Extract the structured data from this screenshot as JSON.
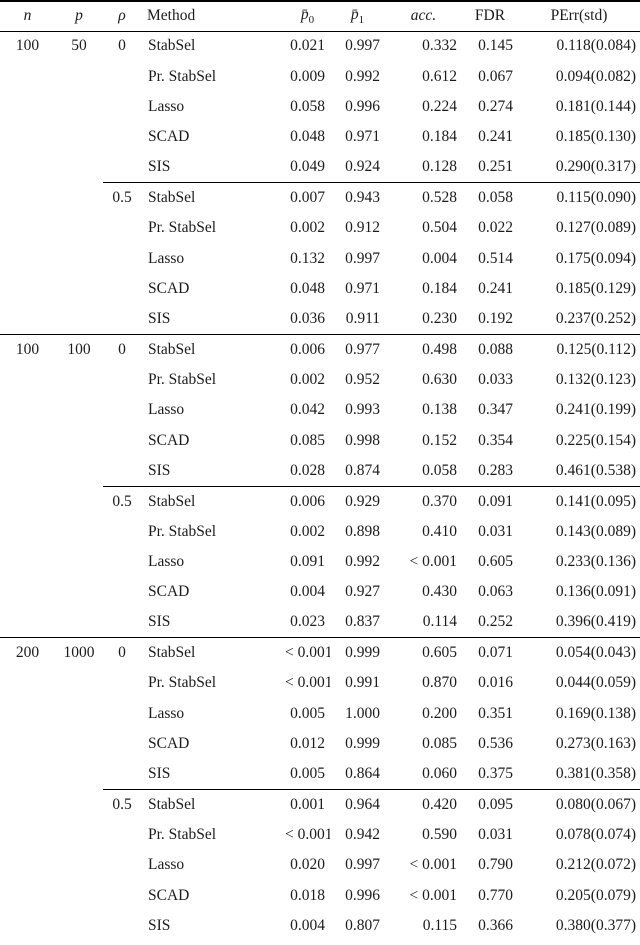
{
  "colors": {
    "background": "#ffffff",
    "text": "#1b1b1b",
    "rule": "#000000"
  },
  "table": {
    "columns": [
      {
        "key": "n",
        "label": "n",
        "italic": true
      },
      {
        "key": "p",
        "label": "p",
        "italic": true
      },
      {
        "key": "rho",
        "label": "ρ",
        "italic": true
      },
      {
        "key": "method",
        "label": "Method",
        "italic": false
      },
      {
        "key": "p0",
        "label": "p̄",
        "sub": "0",
        "italic": true
      },
      {
        "key": "p1",
        "label": "p̄",
        "sub": "1",
        "italic": true
      },
      {
        "key": "acc",
        "label": "acc.",
        "italic": true
      },
      {
        "key": "fdr",
        "label": "FDR",
        "italic": false
      },
      {
        "key": "perr",
        "label": "PErr(std)",
        "italic": false
      }
    ],
    "groups": [
      {
        "n": "100",
        "p": "50",
        "subgroups": [
          {
            "rho": "0",
            "rows": [
              {
                "method": "StabSel",
                "p0": "0.021",
                "p1": "0.997",
                "acc": "0.332",
                "fdr": "0.145",
                "perr": "0.118(0.084)"
              },
              {
                "method": "Pr. StabSel",
                "p0": "0.009",
                "p1": "0.992",
                "acc": "0.612",
                "fdr": "0.067",
                "perr": "0.094(0.082)"
              },
              {
                "method": "Lasso",
                "p0": "0.058",
                "p1": "0.996",
                "acc": "0.224",
                "fdr": "0.274",
                "perr": "0.181(0.144)"
              },
              {
                "method": "SCAD",
                "p0": "0.048",
                "p1": "0.971",
                "acc": "0.184",
                "fdr": "0.241",
                "perr": "0.185(0.130)"
              },
              {
                "method": "SIS",
                "p0": "0.049",
                "p1": "0.924",
                "acc": "0.128",
                "fdr": "0.251",
                "perr": "0.290(0.317)"
              }
            ]
          },
          {
            "rho": "0.5",
            "rows": [
              {
                "method": "StabSel",
                "p0": "0.007",
                "p1": "0.943",
                "acc": "0.528",
                "fdr": "0.058",
                "perr": "0.115(0.090)"
              },
              {
                "method": "Pr. StabSel",
                "p0": "0.002",
                "p1": "0.912",
                "acc": "0.504",
                "fdr": "0.022",
                "perr": "0.127(0.089)"
              },
              {
                "method": "Lasso",
                "p0": "0.132",
                "p1": "0.997",
                "acc": "0.004",
                "fdr": "0.514",
                "perr": "0.175(0.094)"
              },
              {
                "method": "SCAD",
                "p0": "0.048",
                "p1": "0.971",
                "acc": "0.184",
                "fdr": "0.241",
                "perr": "0.185(0.129)"
              },
              {
                "method": "SIS",
                "p0": "0.036",
                "p1": "0.911",
                "acc": "0.230",
                "fdr": "0.192",
                "perr": "0.237(0.252)"
              }
            ]
          }
        ]
      },
      {
        "n": "100",
        "p": "100",
        "subgroups": [
          {
            "rho": "0",
            "rows": [
              {
                "method": "StabSel",
                "p0": "0.006",
                "p1": "0.977",
                "acc": "0.498",
                "fdr": "0.088",
                "perr": "0.125(0.112)"
              },
              {
                "method": "Pr. StabSel",
                "p0": "0.002",
                "p1": "0.952",
                "acc": "0.630",
                "fdr": "0.033",
                "perr": "0.132(0.123)"
              },
              {
                "method": "Lasso",
                "p0": "0.042",
                "p1": "0.993",
                "acc": "0.138",
                "fdr": "0.347",
                "perr": "0.241(0.199)"
              },
              {
                "method": "SCAD",
                "p0": "0.085",
                "p1": "0.998",
                "acc": "0.152",
                "fdr": "0.354",
                "perr": "0.225(0.154)"
              },
              {
                "method": "SIS",
                "p0": "0.028",
                "p1": "0.874",
                "acc": "0.058",
                "fdr": "0.283",
                "perr": "0.461(0.538)"
              }
            ]
          },
          {
            "rho": "0.5",
            "rows": [
              {
                "method": "StabSel",
                "p0": "0.006",
                "p1": "0.929",
                "acc": "0.370",
                "fdr": "0.091",
                "perr": "0.141(0.095)"
              },
              {
                "method": "Pr. StabSel",
                "p0": "0.002",
                "p1": "0.898",
                "acc": "0.410",
                "fdr": "0.031",
                "perr": "0.143(0.089)"
              },
              {
                "method": "Lasso",
                "p0": "0.091",
                "p1": "0.992",
                "acc": "< 0.001",
                "fdr": "0.605",
                "perr": "0.233(0.136)"
              },
              {
                "method": "SCAD",
                "p0": "0.004",
                "p1": "0.927",
                "acc": "0.430",
                "fdr": "0.063",
                "perr": "0.136(0.091)"
              },
              {
                "method": "SIS",
                "p0": "0.023",
                "p1": "0.837",
                "acc": "0.114",
                "fdr": "0.252",
                "perr": "0.396(0.419)"
              }
            ]
          }
        ]
      },
      {
        "n": "200",
        "p": "1000",
        "subgroups": [
          {
            "rho": "0",
            "rows": [
              {
                "method": "StabSel",
                "p0": "< 0.001",
                "p1": "0.999",
                "acc": "0.605",
                "fdr": "0.071",
                "perr": "0.054(0.043)"
              },
              {
                "method": "Pr. StabSel",
                "p0": "< 0.001",
                "p1": "0.991",
                "acc": "0.870",
                "fdr": "0.016",
                "perr": "0.044(0.059)"
              },
              {
                "method": "Lasso",
                "p0": "0.005",
                "p1": "1.000",
                "acc": "0.200",
                "fdr": "0.351",
                "perr": "0.169(0.138)"
              },
              {
                "method": "SCAD",
                "p0": "0.012",
                "p1": "0.999",
                "acc": "0.085",
                "fdr": "0.536",
                "perr": "0.273(0.163)"
              },
              {
                "method": "SIS",
                "p0": "0.005",
                "p1": "0.864",
                "acc": "0.060",
                "fdr": "0.375",
                "perr": "0.381(0.358)"
              }
            ]
          },
          {
            "rho": "0.5",
            "rows": [
              {
                "method": "StabSel",
                "p0": "0.001",
                "p1": "0.964",
                "acc": "0.420",
                "fdr": "0.095",
                "perr": "0.080(0.067)"
              },
              {
                "method": "Pr. StabSel",
                "p0": "< 0.001",
                "p1": "0.942",
                "acc": "0.590",
                "fdr": "0.031",
                "perr": "0.078(0.074)"
              },
              {
                "method": "Lasso",
                "p0": "0.020",
                "p1": "0.997",
                "acc": "< 0.001",
                "fdr": "0.790",
                "perr": "0.212(0.072)"
              },
              {
                "method": "SCAD",
                "p0": "0.018",
                "p1": "0.996",
                "acc": "< 0.001",
                "fdr": "0.770",
                "perr": "0.205(0.079)"
              },
              {
                "method": "SIS",
                "p0": "0.004",
                "p1": "0.807",
                "acc": "0.115",
                "fdr": "0.366",
                "perr": "0.380(0.377)"
              }
            ]
          }
        ]
      }
    ]
  }
}
